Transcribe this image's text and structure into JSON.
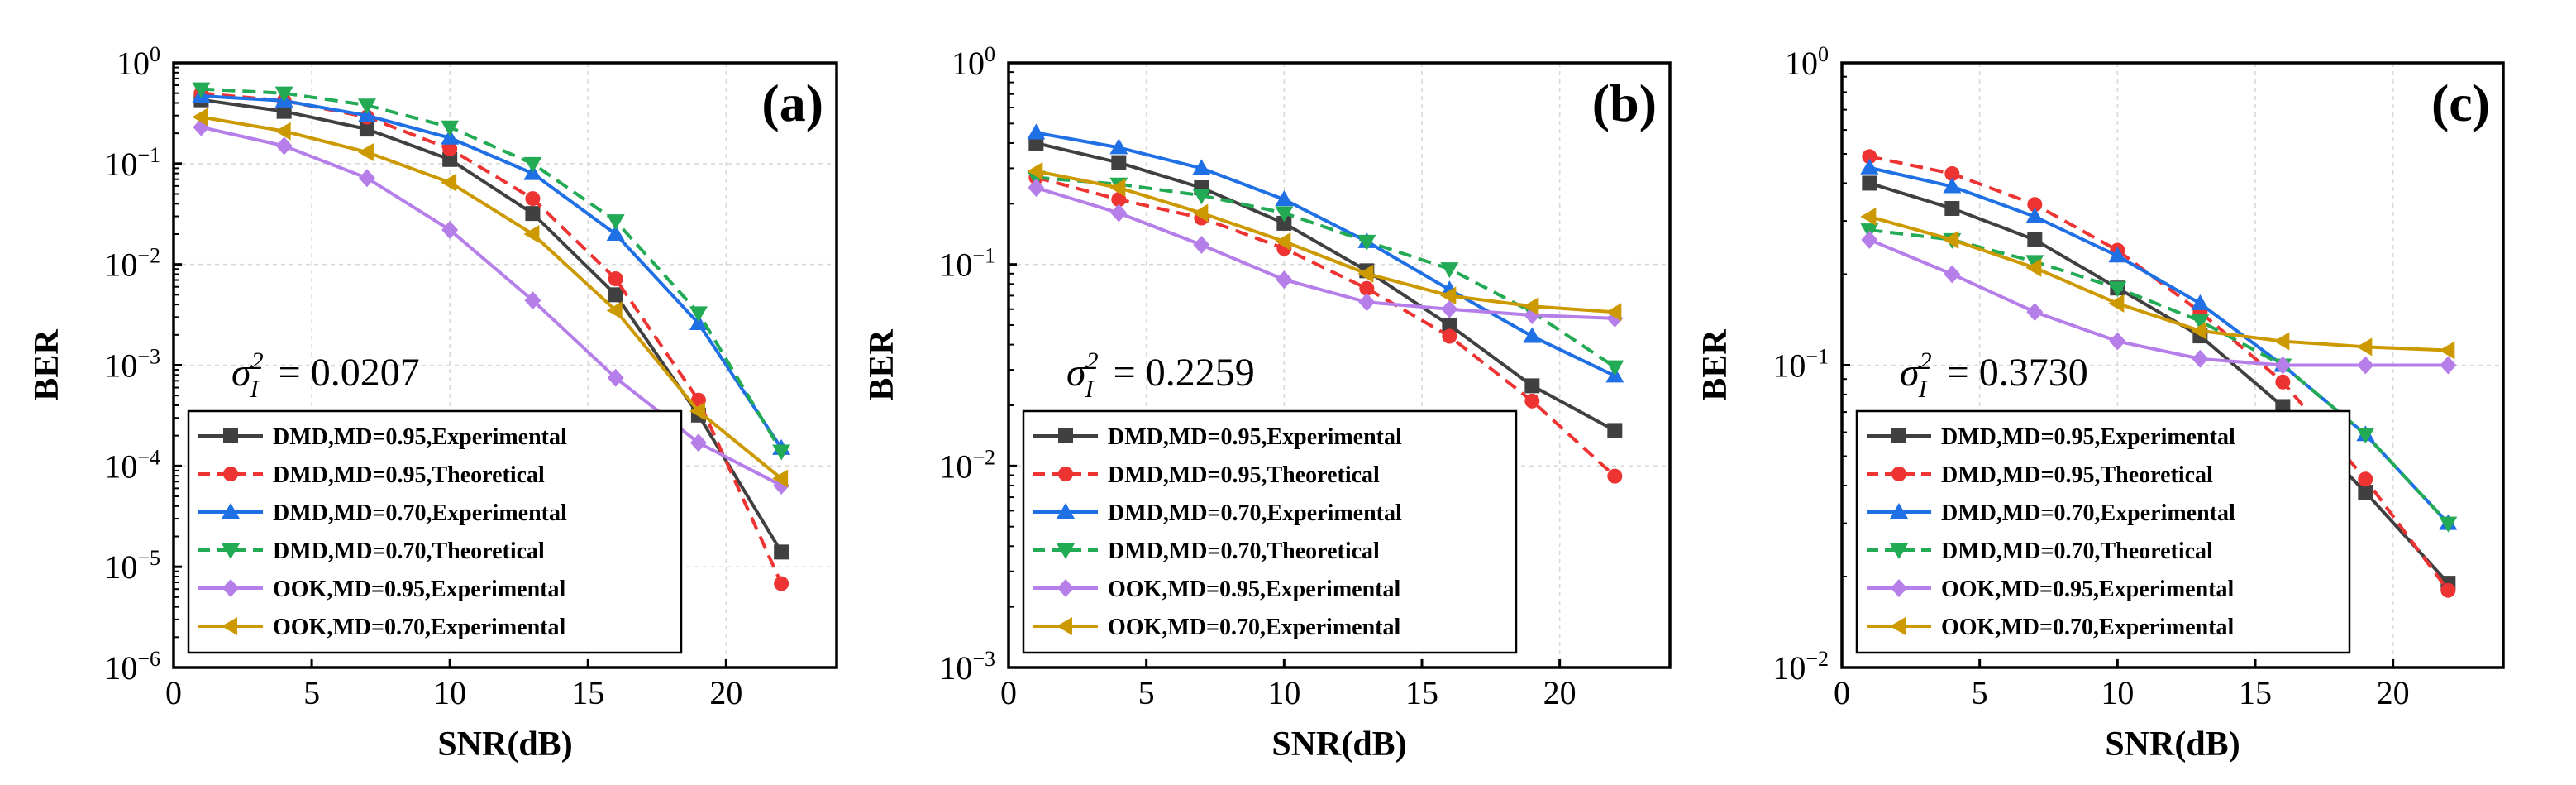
{
  "chart_data": [
    {
      "type": "line",
      "panel_label": "(a)",
      "xlabel": "SNR(dB)",
      "ylabel": "BER",
      "yscale": "log",
      "xlim": [
        0,
        24
      ],
      "xticks": [
        0,
        5,
        10,
        15,
        20
      ],
      "ylim_exp": [
        -6,
        0
      ],
      "yticks_exp": [
        0,
        -1,
        -2,
        -3,
        -4,
        -5,
        -6
      ],
      "annotation": {
        "symbol": "σ",
        "sub": "I",
        "sup": "2",
        "text": "= 0.0207"
      },
      "legend_position": "lower-left",
      "x": [
        1,
        4,
        7,
        10,
        13,
        16,
        19,
        22
      ],
      "series": [
        {
          "name": "DMD,MD=0.95,Experimental",
          "color": "#404040",
          "marker": "square",
          "dash": "solid",
          "values": [
            0.43,
            0.33,
            0.22,
            0.11,
            0.032,
            0.005,
            0.00032,
            1.4e-05
          ]
        },
        {
          "name": "DMD,MD=0.95,Theoretical",
          "color": "#ee3333",
          "marker": "circle",
          "dash": "dashed",
          "values": [
            0.5,
            0.42,
            0.29,
            0.14,
            0.045,
            0.0072,
            0.00045,
            6.8e-06
          ]
        },
        {
          "name": "DMD,MD=0.70,Experimental",
          "color": "#1f6fe5",
          "marker": "triangle-up",
          "dash": "solid",
          "values": [
            0.47,
            0.42,
            0.3,
            0.18,
            0.08,
            0.02,
            0.0026,
            0.00015
          ]
        },
        {
          "name": "DMD,MD=0.70,Theoretical",
          "color": "#22aa55",
          "marker": "triangle-down",
          "dash": "dashed",
          "values": [
            0.55,
            0.5,
            0.38,
            0.23,
            0.1,
            0.027,
            0.0033,
            0.00014
          ]
        },
        {
          "name": "OOK,MD=0.95,Experimental",
          "color": "#b57ee8",
          "marker": "diamond",
          "dash": "solid",
          "values": [
            0.23,
            0.15,
            0.072,
            0.022,
            0.0044,
            0.00075,
            0.00017,
            6.4e-05
          ]
        },
        {
          "name": "OOK,MD=0.70,Experimental",
          "color": "#cc9900",
          "marker": "triangle-left",
          "dash": "solid",
          "values": [
            0.29,
            0.21,
            0.13,
            0.065,
            0.02,
            0.0035,
            0.00035,
            7.5e-05
          ]
        }
      ]
    },
    {
      "type": "line",
      "panel_label": "(b)",
      "xlabel": "SNR(dB)",
      "ylabel": "BER",
      "yscale": "log",
      "xlim": [
        0,
        24
      ],
      "xticks": [
        0,
        5,
        10,
        15,
        20
      ],
      "ylim_exp": [
        -3,
        0
      ],
      "yticks_exp": [
        0,
        -1,
        -2,
        -3
      ],
      "annotation": {
        "symbol": "σ",
        "sub": "I",
        "sup": "2",
        "text": "= 0.2259"
      },
      "legend_position": "lower-left",
      "x": [
        1,
        4,
        7,
        10,
        13,
        16,
        19,
        22
      ],
      "series": [
        {
          "name": "DMD,MD=0.95,Experimental",
          "color": "#404040",
          "marker": "square",
          "dash": "solid",
          "values": [
            0.4,
            0.32,
            0.24,
            0.16,
            0.093,
            0.05,
            0.025,
            0.015
          ]
        },
        {
          "name": "DMD,MD=0.95,Theoretical",
          "color": "#ee3333",
          "marker": "circle",
          "dash": "dashed",
          "values": [
            0.27,
            0.21,
            0.17,
            0.12,
            0.076,
            0.044,
            0.021,
            0.0089
          ]
        },
        {
          "name": "DMD,MD=0.70,Experimental",
          "color": "#1f6fe5",
          "marker": "triangle-up",
          "dash": "solid",
          "values": [
            0.45,
            0.38,
            0.3,
            0.21,
            0.13,
            0.075,
            0.044,
            0.028
          ]
        },
        {
          "name": "DMD,MD=0.70,Theoretical",
          "color": "#22aa55",
          "marker": "triangle-down",
          "dash": "dashed",
          "values": [
            0.27,
            0.25,
            0.22,
            0.18,
            0.13,
            0.095,
            0.058,
            0.031
          ]
        },
        {
          "name": "OOK,MD=0.95,Experimental",
          "color": "#b57ee8",
          "marker": "diamond",
          "dash": "solid",
          "values": [
            0.24,
            0.18,
            0.125,
            0.084,
            0.065,
            0.06,
            0.056,
            0.054
          ]
        },
        {
          "name": "OOK,MD=0.70,Experimental",
          "color": "#cc9900",
          "marker": "triangle-left",
          "dash": "solid",
          "values": [
            0.29,
            0.24,
            0.18,
            0.13,
            0.09,
            0.07,
            0.062,
            0.058
          ]
        }
      ]
    },
    {
      "type": "line",
      "panel_label": "(c)",
      "xlabel": "SNR(dB)",
      "ylabel": "BER",
      "yscale": "log",
      "xlim": [
        0,
        24
      ],
      "xticks": [
        0,
        5,
        10,
        15,
        20
      ],
      "ylim_exp": [
        -2,
        0
      ],
      "yticks_exp": [
        0,
        -1,
        -2
      ],
      "annotation": {
        "symbol": "σ",
        "sub": "I",
        "sup": "2",
        "text": "= 0.3730"
      },
      "legend_position": "lower-left",
      "x": [
        1,
        4,
        7,
        10,
        13,
        16,
        19,
        22
      ],
      "series": [
        {
          "name": "DMD,MD=0.95,Experimental",
          "color": "#404040",
          "marker": "square",
          "dash": "solid",
          "values": [
            0.4,
            0.33,
            0.26,
            0.18,
            0.125,
            0.073,
            0.038,
            0.019
          ]
        },
        {
          "name": "DMD,MD=0.95,Theoretical",
          "color": "#ee3333",
          "marker": "circle",
          "dash": "dashed",
          "values": [
            0.49,
            0.43,
            0.34,
            0.24,
            0.15,
            0.088,
            0.042,
            0.018
          ]
        },
        {
          "name": "DMD,MD=0.70,Experimental",
          "color": "#1f6fe5",
          "marker": "triangle-up",
          "dash": "solid",
          "values": [
            0.45,
            0.39,
            0.31,
            0.23,
            0.16,
            0.1,
            0.059,
            0.03
          ]
        },
        {
          "name": "DMD,MD=0.70,Theoretical",
          "color": "#22aa55",
          "marker": "triangle-down",
          "dash": "dashed",
          "values": [
            0.28,
            0.26,
            0.22,
            0.18,
            0.14,
            0.1,
            0.059,
            0.03
          ]
        },
        {
          "name": "OOK,MD=0.95,Experimental",
          "color": "#b57ee8",
          "marker": "diamond",
          "dash": "solid",
          "values": [
            0.26,
            0.2,
            0.15,
            0.12,
            0.105,
            0.1,
            0.1,
            0.1
          ]
        },
        {
          "name": "OOK,MD=0.70,Experimental",
          "color": "#cc9900",
          "marker": "triangle-left",
          "dash": "solid",
          "values": [
            0.31,
            0.26,
            0.21,
            0.16,
            0.13,
            0.12,
            0.115,
            0.112
          ]
        }
      ]
    }
  ]
}
